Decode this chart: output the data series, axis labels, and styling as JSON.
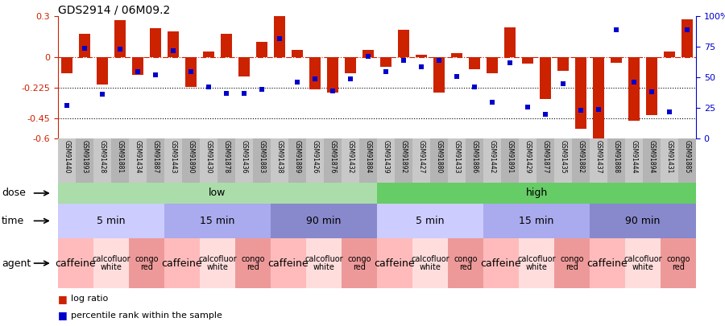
{
  "title": "GDS2914 / 06M09.2",
  "samples": [
    "GSM91440",
    "GSM91893",
    "GSM91428",
    "GSM91881",
    "GSM91434",
    "GSM91887",
    "GSM91443",
    "GSM91890",
    "GSM91430",
    "GSM91878",
    "GSM91436",
    "GSM91883",
    "GSM91438",
    "GSM91889",
    "GSM91426",
    "GSM91876",
    "GSM91432",
    "GSM91884",
    "GSM91439",
    "GSM91892",
    "GSM91427",
    "GSM91880",
    "GSM91433",
    "GSM91886",
    "GSM91442",
    "GSM91891",
    "GSM91429",
    "GSM91877",
    "GSM91435",
    "GSM91882",
    "GSM91437",
    "GSM91888",
    "GSM91444",
    "GSM91894",
    "GSM91431",
    "GSM91885"
  ],
  "log_ratio": [
    -0.12,
    0.17,
    -0.2,
    0.27,
    -0.13,
    0.21,
    0.19,
    -0.22,
    0.04,
    0.17,
    -0.14,
    0.11,
    0.3,
    0.05,
    -0.24,
    -0.26,
    -0.12,
    0.05,
    -0.07,
    0.2,
    0.02,
    -0.26,
    0.03,
    -0.09,
    -0.12,
    0.22,
    -0.05,
    -0.31,
    -0.1,
    -0.53,
    -0.6,
    -0.04,
    -0.47,
    -0.43,
    0.04,
    0.28
  ],
  "percentile": [
    27,
    74,
    36,
    73,
    55,
    52,
    72,
    55,
    42,
    37,
    37,
    40,
    82,
    46,
    49,
    39,
    49,
    67,
    55,
    64,
    59,
    64,
    51,
    42,
    30,
    62,
    26,
    20,
    45,
    23,
    24,
    89,
    46,
    38,
    22,
    89
  ],
  "dose_groups": [
    {
      "label": "low",
      "start": 0,
      "end": 18,
      "color": "#AADDAA"
    },
    {
      "label": "high",
      "start": 18,
      "end": 36,
      "color": "#66CC66"
    }
  ],
  "time_groups": [
    {
      "label": "5 min",
      "start": 0,
      "end": 6,
      "color": "#CCCCFF"
    },
    {
      "label": "15 min",
      "start": 6,
      "end": 12,
      "color": "#AAAAEE"
    },
    {
      "label": "90 min",
      "start": 12,
      "end": 18,
      "color": "#8888CC"
    },
    {
      "label": "5 min",
      "start": 18,
      "end": 24,
      "color": "#CCCCFF"
    },
    {
      "label": "15 min",
      "start": 24,
      "end": 30,
      "color": "#AAAAEE"
    },
    {
      "label": "90 min",
      "start": 30,
      "end": 36,
      "color": "#8888CC"
    }
  ],
  "agent_groups": [
    {
      "label": "caffeine",
      "start": 0,
      "end": 2,
      "color": "#FFBBBB"
    },
    {
      "label": "calcofluor\nwhite",
      "start": 2,
      "end": 4,
      "color": "#FFDDDD"
    },
    {
      "label": "congo\nred",
      "start": 4,
      "end": 6,
      "color": "#EE9999"
    },
    {
      "label": "caffeine",
      "start": 6,
      "end": 8,
      "color": "#FFBBBB"
    },
    {
      "label": "calcofluor\nwhite",
      "start": 8,
      "end": 10,
      "color": "#FFDDDD"
    },
    {
      "label": "congo\nred",
      "start": 10,
      "end": 12,
      "color": "#EE9999"
    },
    {
      "label": "caffeine",
      "start": 12,
      "end": 14,
      "color": "#FFBBBB"
    },
    {
      "label": "calcofluor\nwhite",
      "start": 14,
      "end": 16,
      "color": "#FFDDDD"
    },
    {
      "label": "congo\nred",
      "start": 16,
      "end": 18,
      "color": "#EE9999"
    },
    {
      "label": "caffeine",
      "start": 18,
      "end": 20,
      "color": "#FFBBBB"
    },
    {
      "label": "calcofluor\nwhite",
      "start": 20,
      "end": 22,
      "color": "#FFDDDD"
    },
    {
      "label": "congo\nred",
      "start": 22,
      "end": 24,
      "color": "#EE9999"
    },
    {
      "label": "caffeine",
      "start": 24,
      "end": 26,
      "color": "#FFBBBB"
    },
    {
      "label": "calcofluor\nwhite",
      "start": 26,
      "end": 28,
      "color": "#FFDDDD"
    },
    {
      "label": "congo\nred",
      "start": 28,
      "end": 30,
      "color": "#EE9999"
    },
    {
      "label": "caffeine",
      "start": 30,
      "end": 32,
      "color": "#FFBBBB"
    },
    {
      "label": "calcofluor\nwhite",
      "start": 32,
      "end": 34,
      "color": "#FFDDDD"
    },
    {
      "label": "congo\nred",
      "start": 34,
      "end": 36,
      "color": "#EE9999"
    }
  ],
  "bar_color": "#CC2200",
  "dot_color": "#0000CC",
  "ylim": [
    -0.6,
    0.3
  ],
  "yticks_left": [
    0.3,
    0.0,
    -0.225,
    -0.45,
    -0.6
  ],
  "ytick_left_labels": [
    "0.3",
    "0",
    "-0.225",
    "-0.45",
    "-0.6"
  ],
  "yticks_right_pct": [
    100,
    75,
    50,
    25,
    0
  ],
  "hline_y": 0.0,
  "dotted_lines": [
    -0.225,
    -0.45
  ]
}
